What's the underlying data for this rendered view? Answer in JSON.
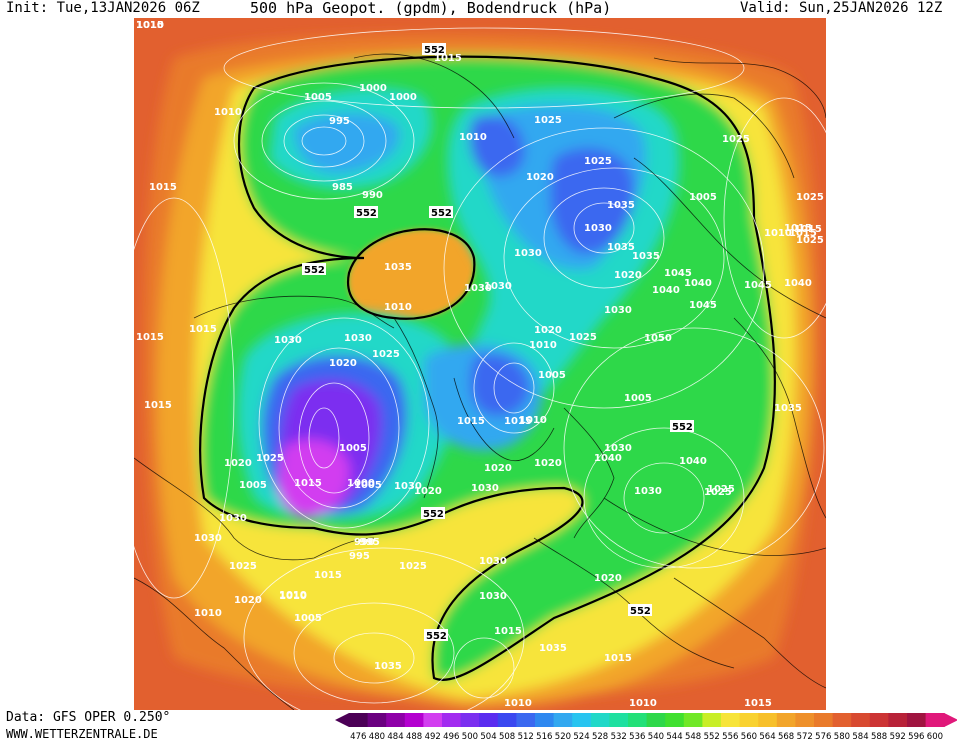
{
  "header": {
    "init": "Init: Tue,13JAN2026 06Z",
    "title": "500 hPa Geopot. (gpdm), Bodendruck (hPa)",
    "valid": "Valid: Sun,25JAN2026 12Z"
  },
  "footer": {
    "data_source": "Data: GFS OPER 0.250°",
    "website": "WWW.WETTERZENTRALE.DE"
  },
  "colors": {
    "frame_bg": "#e2602f",
    "outer": "#e97a2a",
    "orange": "#f2a52a",
    "yellow": "#f7e43a",
    "green": "#2ed84a",
    "cyan": "#20d8c8",
    "lightblue": "#32a8f0",
    "blue": "#3a68f0",
    "violet": "#7b2ff0",
    "magenta": "#d23ef0"
  },
  "scale": {
    "labels": [
      "476",
      "480",
      "484",
      "488",
      "492",
      "496",
      "500",
      "504",
      "508",
      "512",
      "516",
      "520",
      "524",
      "528",
      "532",
      "536",
      "540",
      "544",
      "548",
      "552",
      "556",
      "560",
      "564",
      "568",
      "572",
      "576",
      "580",
      "584",
      "588",
      "592",
      "596",
      "600"
    ],
    "colors": [
      "#4b0056",
      "#6a0080",
      "#8e00a8",
      "#b400d0",
      "#d23ef0",
      "#a22cf0",
      "#7b2ff0",
      "#5a2cf0",
      "#3a48f0",
      "#3a68f0",
      "#2e88f0",
      "#32a8f0",
      "#28c4f0",
      "#20d8c8",
      "#1ee0a0",
      "#22e078",
      "#2ed84a",
      "#40e030",
      "#70e828",
      "#c8ee28",
      "#f7e43a",
      "#f9d230",
      "#f7c02a",
      "#f2a52a",
      "#ee902a",
      "#e97a2a",
      "#e2602f",
      "#d84a30",
      "#cc3434",
      "#b82238",
      "#a01440",
      "#e0187a"
    ]
  },
  "map": {
    "contour_552_label": "552",
    "pressure_labels": [
      {
        "t": "1015"
      },
      {
        "t": "1005"
      },
      {
        "t": "1000"
      },
      {
        "t": "1000"
      },
      {
        "t": "995"
      },
      {
        "t": "1010"
      },
      {
        "t": "1015"
      },
      {
        "t": "1005"
      },
      {
        "t": "1015"
      },
      {
        "t": "1020"
      },
      {
        "t": "1015"
      },
      {
        "t": "1010"
      },
      {
        "t": "1010"
      },
      {
        "t": "1025"
      },
      {
        "t": "985"
      },
      {
        "t": "990"
      },
      {
        "t": "1010"
      },
      {
        "t": "1020"
      },
      {
        "t": "1025"
      },
      {
        "t": "1035"
      },
      {
        "t": "1030"
      },
      {
        "t": "1035"
      },
      {
        "t": "1020"
      },
      {
        "t": "1005"
      },
      {
        "t": "1015"
      },
      {
        "t": "1025"
      },
      {
        "t": "1030"
      },
      {
        "t": "1040"
      },
      {
        "t": "1045"
      },
      {
        "t": "1035"
      },
      {
        "t": "1030"
      },
      {
        "t": "1040"
      },
      {
        "t": "1045"
      },
      {
        "t": "1010"
      },
      {
        "t": "1005"
      },
      {
        "t": "1015"
      },
      {
        "t": "1030"
      },
      {
        "t": "1030"
      },
      {
        "t": "1020"
      },
      {
        "t": "1030"
      },
      {
        "t": "1050"
      },
      {
        "t": "1025"
      },
      {
        "t": "1015"
      },
      {
        "t": "1025"
      },
      {
        "t": "1030"
      },
      {
        "t": "1030"
      },
      {
        "t": "1025"
      },
      {
        "t": "1035"
      },
      {
        "t": "1010"
      },
      {
        "t": "1005"
      },
      {
        "t": "1000"
      },
      {
        "t": "995"
      },
      {
        "t": "1015"
      },
      {
        "t": "1020"
      },
      {
        "t": "1030"
      },
      {
        "t": "1010"
      },
      {
        "t": "1005"
      },
      {
        "t": "1015"
      },
      {
        "t": "1025"
      },
      {
        "t": "1040"
      },
      {
        "t": "1040"
      },
      {
        "t": "1030"
      },
      {
        "t": "1020"
      },
      {
        "t": "1035"
      },
      {
        "t": "1045"
      },
      {
        "t": "1040"
      },
      {
        "t": "1030"
      },
      {
        "t": "1025"
      },
      {
        "t": "1015"
      },
      {
        "t": "1010"
      },
      {
        "t": "1005"
      },
      {
        "t": "1015"
      },
      {
        "t": "1025"
      },
      {
        "t": "1005"
      },
      {
        "t": "990"
      },
      {
        "t": "995"
      },
      {
        "t": "1025"
      },
      {
        "t": "1030"
      },
      {
        "t": "1020"
      },
      {
        "t": "1025"
      },
      {
        "t": "1015"
      },
      {
        "t": "1010"
      },
      {
        "t": "1030"
      },
      {
        "t": "1020"
      },
      {
        "t": "1015"
      },
      {
        "t": "1035"
      },
      {
        "t": "1030"
      },
      {
        "t": "1020"
      },
      {
        "t": "1015"
      },
      {
        "t": "1010"
      },
      {
        "t": "1010"
      },
      {
        "t": "1025"
      },
      {
        "t": "1015"
      },
      {
        "t": "1020"
      },
      {
        "t": "1030"
      },
      {
        "t": "1035"
      },
      {
        "t": "1010"
      },
      {
        "t": "1015"
      },
      {
        "t": "1010"
      }
    ]
  }
}
